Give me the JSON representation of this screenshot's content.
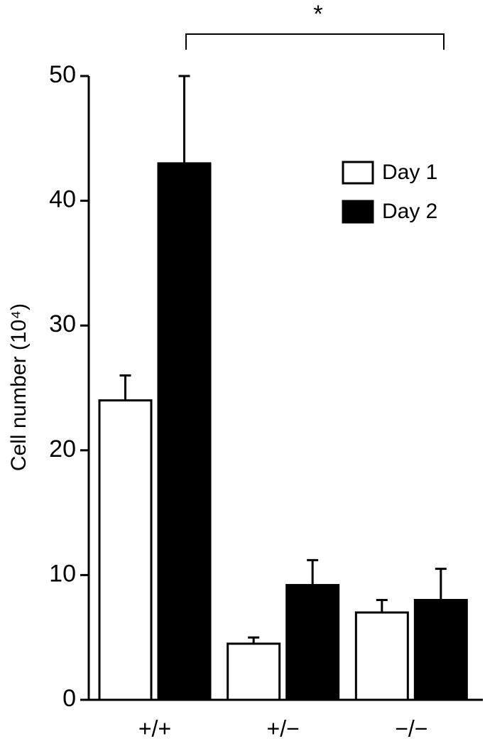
{
  "chart_data": {
    "type": "bar",
    "y_label": "Cell number (10⁴)",
    "annotation": "*",
    "categories": [
      "+/+",
      "+/−",
      "−/−"
    ],
    "series": [
      {
        "name": "Day 1",
        "color": "#ffffff",
        "values": [
          24,
          4.5,
          7
        ],
        "errors": [
          2,
          0.5,
          1
        ]
      },
      {
        "name": "Day 2",
        "color": "#000000",
        "values": [
          43,
          9.2,
          8
        ],
        "errors": [
          7,
          2,
          2.5
        ]
      }
    ],
    "ylim": [
      0,
      50
    ],
    "yticks": [
      0,
      10,
      20,
      30,
      40,
      50
    ]
  }
}
